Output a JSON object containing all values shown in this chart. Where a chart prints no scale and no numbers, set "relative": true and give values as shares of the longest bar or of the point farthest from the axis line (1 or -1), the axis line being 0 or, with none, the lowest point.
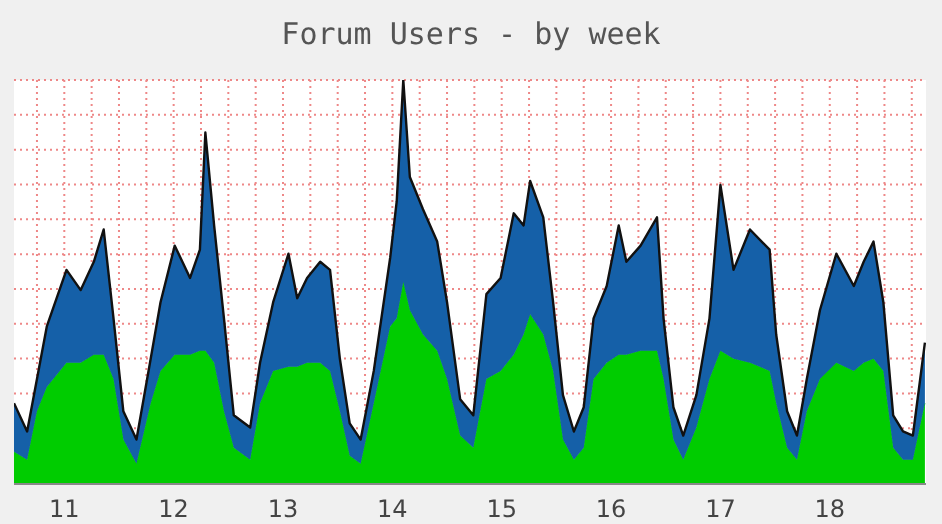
{
  "chart_data": {
    "type": "area",
    "title": "Forum Users - by week",
    "stacked": true,
    "relative": true,
    "grid": true,
    "x": [
      10.54,
      10.66,
      10.75,
      10.84,
      11.02,
      11.15,
      11.27,
      11.36,
      11.45,
      11.54,
      11.66,
      11.79,
      11.88,
      12.01,
      12.15,
      12.24,
      12.29,
      12.37,
      12.46,
      12.55,
      12.7,
      12.79,
      12.91,
      13.05,
      13.13,
      13.22,
      13.34,
      13.43,
      13.52,
      13.61,
      13.71,
      13.83,
      13.98,
      14.04,
      14.1,
      14.16,
      14.28,
      14.41,
      14.5,
      14.62,
      14.74,
      14.86,
      14.99,
      15.11,
      15.2,
      15.26,
      15.38,
      15.47,
      15.56,
      15.66,
      15.75,
      15.84,
      15.96,
      16.07,
      16.14,
      16.27,
      16.42,
      16.48,
      16.57,
      16.66,
      16.78,
      16.9,
      17.0,
      17.12,
      17.27,
      17.45,
      17.51,
      17.61,
      17.7,
      17.79,
      17.91,
      18.06,
      18.22,
      18.31,
      18.4,
      18.49,
      18.58,
      18.67,
      18.76,
      18.87
    ],
    "xlim": [
      10.54,
      18.88
    ],
    "xticks": [
      11,
      12,
      13,
      14,
      15,
      16,
      17,
      18
    ],
    "series": [
      {
        "color": "#00cc00",
        "values": [
          0.08,
          0.06,
          0.18,
          0.24,
          0.3,
          0.3,
          0.32,
          0.32,
          0.26,
          0.11,
          0.05,
          0.2,
          0.28,
          0.32,
          0.32,
          0.33,
          0.33,
          0.3,
          0.18,
          0.09,
          0.06,
          0.2,
          0.28,
          0.29,
          0.29,
          0.3,
          0.3,
          0.28,
          0.18,
          0.07,
          0.05,
          0.2,
          0.39,
          0.41,
          0.5,
          0.43,
          0.37,
          0.33,
          0.26,
          0.12,
          0.09,
          0.26,
          0.28,
          0.32,
          0.37,
          0.42,
          0.37,
          0.28,
          0.11,
          0.06,
          0.09,
          0.26,
          0.3,
          0.32,
          0.32,
          0.33,
          0.33,
          0.26,
          0.11,
          0.06,
          0.14,
          0.26,
          0.33,
          0.31,
          0.3,
          0.28,
          0.2,
          0.09,
          0.06,
          0.18,
          0.26,
          0.3,
          0.28,
          0.3,
          0.31,
          0.28,
          0.09,
          0.06,
          0.06,
          0.2
        ]
      },
      {
        "color": "#1560a8",
        "values": [
          0.12,
          0.07,
          0.08,
          0.15,
          0.23,
          0.18,
          0.23,
          0.31,
          0.15,
          0.07,
          0.06,
          0.11,
          0.17,
          0.27,
          0.19,
          0.25,
          0.54,
          0.34,
          0.23,
          0.08,
          0.08,
          0.1,
          0.17,
          0.28,
          0.17,
          0.21,
          0.25,
          0.25,
          0.13,
          0.08,
          0.06,
          0.08,
          0.17,
          0.29,
          0.5,
          0.33,
          0.31,
          0.27,
          0.19,
          0.09,
          0.08,
          0.21,
          0.23,
          0.35,
          0.27,
          0.33,
          0.29,
          0.17,
          0.11,
          0.07,
          0.1,
          0.15,
          0.19,
          0.32,
          0.23,
          0.26,
          0.33,
          0.15,
          0.08,
          0.06,
          0.08,
          0.15,
          0.41,
          0.22,
          0.33,
          0.3,
          0.17,
          0.09,
          0.06,
          0.08,
          0.17,
          0.27,
          0.21,
          0.25,
          0.29,
          0.17,
          0.08,
          0.07,
          0.06,
          0.15
        ]
      }
    ]
  }
}
